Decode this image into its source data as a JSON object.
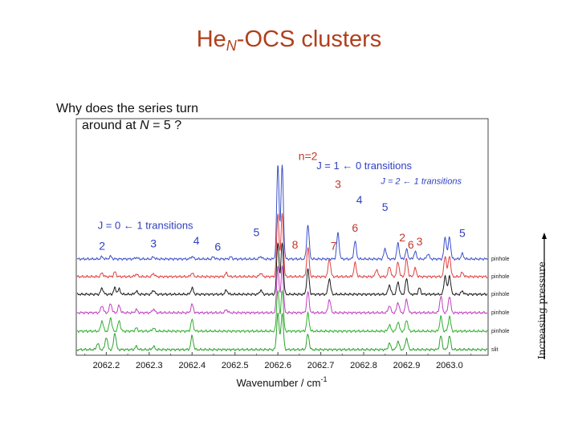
{
  "slide": {
    "title_main": "He",
    "title_sub": "N",
    "title_rest": "-OCS clusters",
    "question_line1": "Why does the series turn",
    "question_line2_prefix": "around at ",
    "question_line2_var": "N",
    "question_line2_suffix": " = 5 ?",
    "pressure_label": "Increasing pressure"
  },
  "colors": {
    "title": "#b0401c",
    "annotation_red": "#c0392b",
    "annotation_blue": "#2f3fbf"
  },
  "chart_data": {
    "type": "line",
    "xlabel": "Wavenumber / cm",
    "xlabel_sup": "-1",
    "xlim": [
      2062.13,
      2063.09
    ],
    "ticks": [
      "2062.2",
      "2062.3",
      "2062.4",
      "2062.5",
      "2062.6",
      "2062.7",
      "2062.8",
      "2062.9",
      "2063.0"
    ],
    "grid": false,
    "series": [
      {
        "name": "pinhole",
        "color": "#3b50c8",
        "peaks": [
          [
            2062.19,
            0.2
          ],
          [
            2062.21,
            0.25
          ],
          [
            2062.27,
            0.15
          ],
          [
            2062.31,
            0.2
          ],
          [
            2062.4,
            0.25
          ],
          [
            2062.45,
            0.2
          ],
          [
            2062.49,
            0.2
          ],
          [
            2062.56,
            0.25
          ],
          [
            2062.6,
            9.0
          ],
          [
            2062.61,
            9.0
          ],
          [
            2062.67,
            3.3
          ],
          [
            2062.74,
            2.5
          ],
          [
            2062.78,
            1.7
          ],
          [
            2062.85,
            1.0
          ],
          [
            2062.88,
            1.5
          ],
          [
            2062.9,
            0.9
          ],
          [
            2062.92,
            0.7
          ],
          [
            2062.95,
            0.5
          ],
          [
            2062.99,
            2.1
          ],
          [
            2063.0,
            2.1
          ],
          [
            2063.03,
            0.5
          ]
        ]
      },
      {
        "name": "pinhole",
        "color": "#e04040",
        "peaks": [
          [
            2062.19,
            0.35
          ],
          [
            2062.22,
            0.45
          ],
          [
            2062.27,
            0.25
          ],
          [
            2062.31,
            0.3
          ],
          [
            2062.4,
            0.35
          ],
          [
            2062.48,
            0.35
          ],
          [
            2062.56,
            0.35
          ],
          [
            2062.6,
            6.0
          ],
          [
            2062.61,
            6.0
          ],
          [
            2062.67,
            2.8
          ],
          [
            2062.72,
            1.7
          ],
          [
            2062.78,
            1.3
          ],
          [
            2062.83,
            0.7
          ],
          [
            2062.86,
            1.0
          ],
          [
            2062.88,
            1.4
          ],
          [
            2062.9,
            1.7
          ],
          [
            2062.92,
            0.8
          ],
          [
            2062.99,
            2.0
          ],
          [
            2063.0,
            2.0
          ],
          [
            2063.03,
            0.4
          ]
        ]
      },
      {
        "name": "pinhole",
        "color": "#1a1a1a",
        "peaks": [
          [
            2062.19,
            0.6
          ],
          [
            2062.22,
            0.6
          ],
          [
            2062.23,
            0.5
          ],
          [
            2062.27,
            0.3
          ],
          [
            2062.31,
            0.4
          ],
          [
            2062.4,
            0.6
          ],
          [
            2062.48,
            0.4
          ],
          [
            2062.56,
            0.4
          ],
          [
            2062.6,
            5.0
          ],
          [
            2062.61,
            5.0
          ],
          [
            2062.67,
            2.4
          ],
          [
            2062.72,
            1.5
          ],
          [
            2062.86,
            0.9
          ],
          [
            2062.88,
            1.2
          ],
          [
            2062.9,
            1.5
          ],
          [
            2062.93,
            0.6
          ],
          [
            2062.99,
            1.8
          ],
          [
            2063.0,
            1.8
          ],
          [
            2063.03,
            0.3
          ]
        ]
      },
      {
        "name": "pinhole",
        "color": "#c040c0",
        "peaks": [
          [
            2062.19,
            0.7
          ],
          [
            2062.21,
            0.9
          ],
          [
            2062.23,
            0.7
          ],
          [
            2062.27,
            0.3
          ],
          [
            2062.31,
            0.35
          ],
          [
            2062.4,
            0.8
          ],
          [
            2062.48,
            0.3
          ],
          [
            2062.6,
            4.5
          ],
          [
            2062.61,
            4.5
          ],
          [
            2062.67,
            2.0
          ],
          [
            2062.72,
            1.3
          ],
          [
            2062.86,
            0.7
          ],
          [
            2062.88,
            1.0
          ],
          [
            2062.9,
            1.3
          ],
          [
            2062.98,
            1.6
          ],
          [
            2063.0,
            1.6
          ]
        ]
      },
      {
        "name": "pinhole",
        "color": "#30b030",
        "peaks": [
          [
            2062.19,
            1.0
          ],
          [
            2062.21,
            1.3
          ],
          [
            2062.23,
            1.0
          ],
          [
            2062.27,
            0.3
          ],
          [
            2062.31,
            0.3
          ],
          [
            2062.4,
            1.1
          ],
          [
            2062.6,
            4.0
          ],
          [
            2062.61,
            4.0
          ],
          [
            2062.67,
            1.7
          ],
          [
            2062.86,
            0.6
          ],
          [
            2062.88,
            0.9
          ],
          [
            2062.9,
            1.1
          ],
          [
            2062.98,
            1.4
          ],
          [
            2063.0,
            1.4
          ]
        ]
      },
      {
        "name": "slit",
        "color": "#30a030",
        "peaks": [
          [
            2062.18,
            0.6
          ],
          [
            2062.2,
            1.2
          ],
          [
            2062.22,
            1.6
          ],
          [
            2062.27,
            0.3
          ],
          [
            2062.31,
            0.3
          ],
          [
            2062.4,
            1.3
          ],
          [
            2062.6,
            3.5
          ],
          [
            2062.61,
            3.5
          ],
          [
            2062.67,
            1.5
          ],
          [
            2062.86,
            0.6
          ],
          [
            2062.88,
            0.8
          ],
          [
            2062.9,
            1.1
          ],
          [
            2062.98,
            1.3
          ],
          [
            2063.0,
            1.3
          ]
        ]
      }
    ],
    "annotations": [
      {
        "text": "n=2",
        "x": 2062.67,
        "level": 9.5,
        "color": "#c0392b",
        "size": 14
      },
      {
        "text": "J = 1 ← 0 transitions",
        "x": 2062.69,
        "level": 8.6,
        "color": "#2f3fbf",
        "size": 13,
        "anchor": "start"
      },
      {
        "text": "J = 2 ← 1 transitions",
        "x": 2062.84,
        "level": 7.2,
        "color": "#2f3fbf",
        "size": 11,
        "italic": true,
        "anchor": "start"
      },
      {
        "text": "J = 0 ← 1 transitions",
        "x": 2062.18,
        "level": 2.9,
        "color": "#2f3fbf",
        "size": 13,
        "anchor": "start"
      },
      {
        "text": "3",
        "x": 2062.74,
        "level": 6.8,
        "color": "#c0392b",
        "size": 14
      },
      {
        "text": "4",
        "x": 2062.79,
        "level": 5.3,
        "color": "#2f3fbf",
        "size": 14
      },
      {
        "text": "5",
        "x": 2062.85,
        "level": 4.6,
        "color": "#2f3fbf",
        "size": 14
      },
      {
        "text": "6",
        "x": 2062.78,
        "level": 2.6,
        "color": "#c0392b",
        "size": 14
      },
      {
        "text": "2",
        "x": 2062.89,
        "level": 1.7,
        "color": "#c0392b",
        "size": 14
      },
      {
        "text": "6",
        "x": 2062.91,
        "level": 1.0,
        "color": "#c0392b",
        "size": 14
      },
      {
        "text": "3",
        "x": 2062.93,
        "level": 1.3,
        "color": "#c0392b",
        "size": 14
      },
      {
        "text": "5",
        "x": 2063.03,
        "level": 2.1,
        "color": "#2f3fbf",
        "size": 14
      },
      {
        "text": "2",
        "x": 2062.19,
        "level": 0.9,
        "color": "#2f3fbf",
        "size": 14
      },
      {
        "text": "3",
        "x": 2062.31,
        "level": 1.1,
        "color": "#2f3fbf",
        "size": 14
      },
      {
        "text": "4",
        "x": 2062.41,
        "level": 1.4,
        "color": "#2f3fbf",
        "size": 14
      },
      {
        "text": "6",
        "x": 2062.46,
        "level": 0.8,
        "color": "#2f3fbf",
        "size": 14
      },
      {
        "text": "5",
        "x": 2062.55,
        "level": 2.2,
        "color": "#2f3fbf",
        "size": 14
      },
      {
        "text": "8",
        "x": 2062.64,
        "level": 1.0,
        "color": "#c0392b",
        "size": 14
      },
      {
        "text": "7",
        "x": 2062.73,
        "level": 0.9,
        "color": "#c0392b",
        "size": 14
      }
    ]
  }
}
